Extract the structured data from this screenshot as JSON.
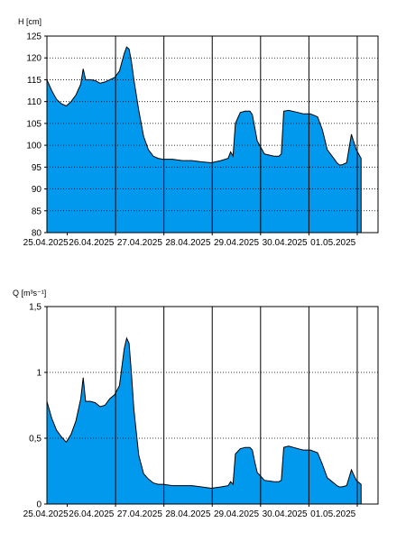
{
  "chart_data": [
    {
      "type": "area",
      "unit_label": "H [cm]",
      "ylim": [
        80,
        125
      ],
      "y_ticks": [
        "80",
        "85",
        "90",
        "95",
        "100",
        "105",
        "110",
        "115",
        "120",
        "125"
      ],
      "y_tick_values": [
        80,
        85,
        90,
        95,
        100,
        105,
        110,
        115,
        120,
        125
      ],
      "x_tick_labels": [
        "25.04.2025",
        "26.04.2025",
        "27.04.2025",
        "28.04.2025",
        "29.04.2025",
        "30.04.2025",
        "01.05.2025"
      ],
      "grid": "dotted horizontal, solid vertical at day boundaries",
      "fill_color": "#0099ee",
      "series": [
        {
          "x": [
            0.0,
            0.1,
            0.2,
            0.3,
            0.4,
            0.5,
            0.6,
            0.7,
            0.75,
            0.8,
            0.9,
            1.0,
            1.1,
            1.2,
            1.3,
            1.4,
            1.5,
            1.6,
            1.65,
            1.7,
            1.75,
            1.8,
            1.9,
            2.0,
            2.1,
            2.2,
            2.3,
            2.4,
            2.6,
            2.8,
            3.0,
            3.2,
            3.4,
            3.6,
            3.75,
            3.8,
            3.85,
            3.9,
            4.0,
            4.1,
            4.2,
            4.25,
            4.3,
            4.35,
            4.5,
            4.7,
            4.8,
            4.85,
            4.9,
            5.0,
            5.2,
            5.3,
            5.45,
            5.6,
            5.7,
            5.8,
            5.9,
            6.0,
            6.05,
            6.1,
            6.2,
            6.3,
            6.4,
            6.5
          ],
          "y": [
            115,
            112.5,
            110.5,
            109.5,
            109,
            110,
            111.5,
            114,
            117.5,
            115,
            115,
            114.8,
            114.2,
            114.5,
            115,
            115.5,
            117,
            121,
            122.5,
            122,
            119,
            115,
            108,
            102,
            99,
            97.5,
            97,
            96.8,
            96.8,
            96.5,
            96.5,
            96.2,
            96.0,
            96.5,
            97,
            98.5,
            97.5,
            105,
            107.5,
            107.8,
            107.8,
            107,
            104,
            101,
            98,
            97.5,
            97.5,
            98,
            107.8,
            108,
            107.5,
            107.2,
            107.2,
            106.5,
            103.5,
            99,
            97.5,
            96,
            95.5,
            95.5,
            96,
            102.5,
            99,
            97
          ]
        }
      ]
    },
    {
      "type": "area",
      "unit_label": "Q [m³s⁻¹]",
      "ylim": [
        0,
        1.5
      ],
      "y_ticks": [
        "0",
        "0,5",
        "1",
        "1,5"
      ],
      "y_tick_values": [
        0,
        0.5,
        1,
        1.5
      ],
      "x_tick_labels": [
        "25.04.2025",
        "26.04.2025",
        "27.04.2025",
        "28.04.2025",
        "29.04.2025",
        "30.04.2025",
        "01.05.2025"
      ],
      "grid": "dotted horizontal, solid vertical at day boundaries",
      "fill_color": "#0099ee",
      "series": [
        {
          "x": [
            0.0,
            0.1,
            0.2,
            0.3,
            0.4,
            0.5,
            0.6,
            0.7,
            0.75,
            0.8,
            0.9,
            1.0,
            1.1,
            1.2,
            1.3,
            1.4,
            1.5,
            1.6,
            1.65,
            1.7,
            1.75,
            1.8,
            1.9,
            2.0,
            2.1,
            2.2,
            2.3,
            2.4,
            2.6,
            2.8,
            3.0,
            3.2,
            3.4,
            3.6,
            3.75,
            3.8,
            3.85,
            3.9,
            4.0,
            4.1,
            4.2,
            4.25,
            4.3,
            4.35,
            4.5,
            4.7,
            4.8,
            4.85,
            4.9,
            5.0,
            5.2,
            5.3,
            5.45,
            5.6,
            5.7,
            5.8,
            5.9,
            6.0,
            6.05,
            6.1,
            6.2,
            6.3,
            6.4,
            6.5
          ],
          "y": [
            0.78,
            0.65,
            0.56,
            0.51,
            0.47,
            0.53,
            0.63,
            0.8,
            0.96,
            0.78,
            0.78,
            0.77,
            0.74,
            0.75,
            0.8,
            0.83,
            0.9,
            1.18,
            1.26,
            1.22,
            0.98,
            0.72,
            0.37,
            0.23,
            0.19,
            0.16,
            0.15,
            0.15,
            0.14,
            0.14,
            0.14,
            0.13,
            0.12,
            0.13,
            0.14,
            0.17,
            0.15,
            0.38,
            0.42,
            0.43,
            0.43,
            0.41,
            0.32,
            0.24,
            0.18,
            0.17,
            0.17,
            0.18,
            0.43,
            0.44,
            0.42,
            0.41,
            0.41,
            0.39,
            0.3,
            0.2,
            0.17,
            0.14,
            0.13,
            0.13,
            0.14,
            0.26,
            0.18,
            0.15
          ]
        }
      ]
    }
  ]
}
